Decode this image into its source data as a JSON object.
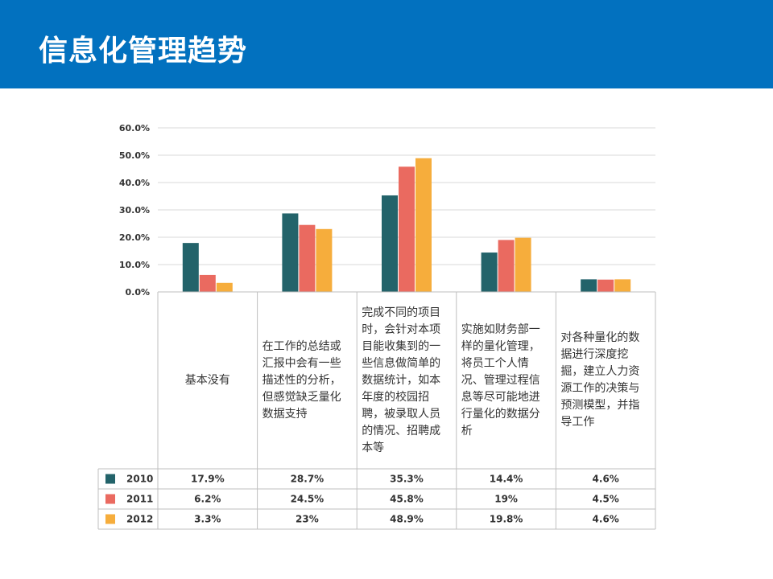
{
  "page": {
    "title": "信息化管理趋势"
  },
  "colors": {
    "header": "#0271bf",
    "s2010": "#23636a",
    "s2011": "#ea6a60",
    "s2012": "#f6ad3c",
    "grid": "#d9d9d9"
  },
  "chart_data": {
    "type": "bar",
    "title": "",
    "xlabel": "",
    "ylabel": "",
    "ylim": [
      0,
      60
    ],
    "yticks": [
      "0.0%",
      "10.0%",
      "20.0%",
      "30.0%",
      "40.0%",
      "50.0%",
      "60.0%"
    ],
    "grid": true,
    "legend": "table-left",
    "categories": [
      "基本没有",
      "在工作的总结或汇报中会有一些描述性的分析，但感觉缺乏量化数据支持",
      "完成不同的项目时，会针对本项目能收集到的一些信息做简单的数据统计，如本年度的校园招聘，被录取人员的情况、招聘成本等",
      "实施如财务部一样的量化管理，将员工个人情况、管理过程信息等尽可能地进行量化的数据分析",
      "对各种量化的数据进行深度挖掘，建立人力资源工作的决策与预测模型，并指导工作"
    ],
    "series": [
      {
        "name": "2010",
        "values": [
          17.9,
          28.7,
          35.3,
          14.4,
          4.6
        ],
        "labels": [
          "17.9%",
          "28.7%",
          "35.3%",
          "14.4%",
          "4.6%"
        ]
      },
      {
        "name": "2011",
        "values": [
          6.2,
          24.5,
          45.8,
          19,
          4.5
        ],
        "labels": [
          "6.2%",
          "24.5%",
          "45.8%",
          "19%",
          "4.5%"
        ]
      },
      {
        "name": "2012",
        "values": [
          3.3,
          23,
          48.9,
          19.8,
          4.6
        ],
        "labels": [
          "3.3%",
          "23%",
          "48.9%",
          "19.8%",
          "4.6%"
        ]
      }
    ]
  }
}
